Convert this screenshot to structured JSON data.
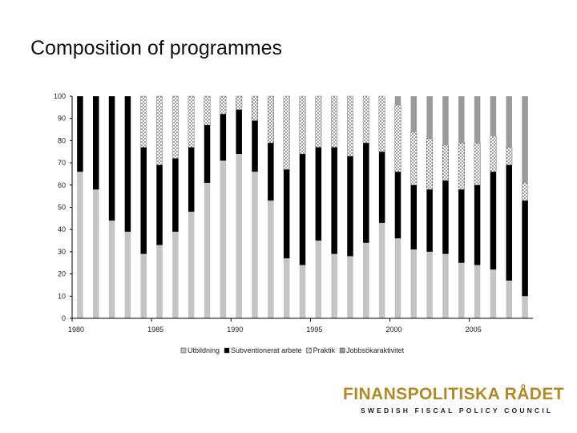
{
  "slide": {
    "title": "Composition of programmes"
  },
  "logo": {
    "name": "FINANSPOLITISKA RÅDET",
    "tagline": "SWEDISH FISCAL POLICY COUNCIL"
  },
  "colors": {
    "utbildning": "#c4c4c4",
    "subventionerat": "#000000",
    "praktik": "#ffffff",
    "jobbsokaraktivitet": "#9a9a9a",
    "logo_gold": "#b08a24"
  },
  "chart_data": {
    "type": "bar",
    "stacked": true,
    "title": "",
    "xlabel": "",
    "ylabel": "",
    "ylim": [
      0,
      100
    ],
    "yticks": [
      0,
      10,
      20,
      30,
      40,
      50,
      60,
      70,
      80,
      90,
      100
    ],
    "xtick_labels": [
      "1980",
      "1985",
      "1990",
      "1995",
      "2000",
      "2005"
    ],
    "categories": [
      "1980",
      "1981",
      "1982",
      "1983",
      "1984",
      "1985",
      "1986",
      "1987",
      "1988",
      "1989",
      "1990",
      "1991",
      "1992",
      "1993",
      "1994",
      "1995",
      "1996",
      "1997",
      "1998",
      "1999",
      "2000",
      "2001",
      "2002",
      "2003",
      "2004",
      "2005",
      "2006",
      "2007",
      "2008"
    ],
    "series": [
      {
        "name": "Utbildning",
        "key": "utbildning",
        "values": [
          66,
          58,
          44,
          39,
          29,
          33,
          39,
          48,
          61,
          71,
          74,
          66,
          53,
          27,
          24,
          35,
          29,
          28,
          34,
          43,
          36,
          31,
          30,
          29,
          25,
          24,
          22,
          17,
          10
        ]
      },
      {
        "name": "Subventionerat arbete",
        "key": "subventionerat",
        "values": [
          34,
          42,
          56,
          61,
          48,
          36,
          33,
          29,
          26,
          21,
          20,
          23,
          26,
          40,
          50,
          42,
          48,
          45,
          45,
          32,
          30,
          29,
          28,
          33,
          33,
          36,
          44,
          52,
          43
        ]
      },
      {
        "name": "Praktik",
        "key": "praktik",
        "values": [
          0,
          0,
          0,
          0,
          23,
          31,
          28,
          23,
          13,
          8,
          6,
          11,
          21,
          33,
          26,
          23,
          23,
          27,
          21,
          25,
          30,
          24,
          23,
          16,
          21,
          19,
          16,
          8,
          8
        ]
      },
      {
        "name": "Jobbsökaraktivitet",
        "key": "jobbsokaraktivitet",
        "values": [
          0,
          0,
          0,
          0,
          0,
          0,
          0,
          0,
          0,
          0,
          0,
          0,
          0,
          0,
          0,
          0,
          0,
          0,
          0,
          0,
          4,
          16,
          19,
          22,
          21,
          21,
          18,
          23,
          39
        ]
      }
    ],
    "legend": [
      "Utbildning",
      "Subventionerat arbete",
      "Praktik",
      "Jobbsökaraktivitet"
    ],
    "legend_position": "bottom"
  }
}
